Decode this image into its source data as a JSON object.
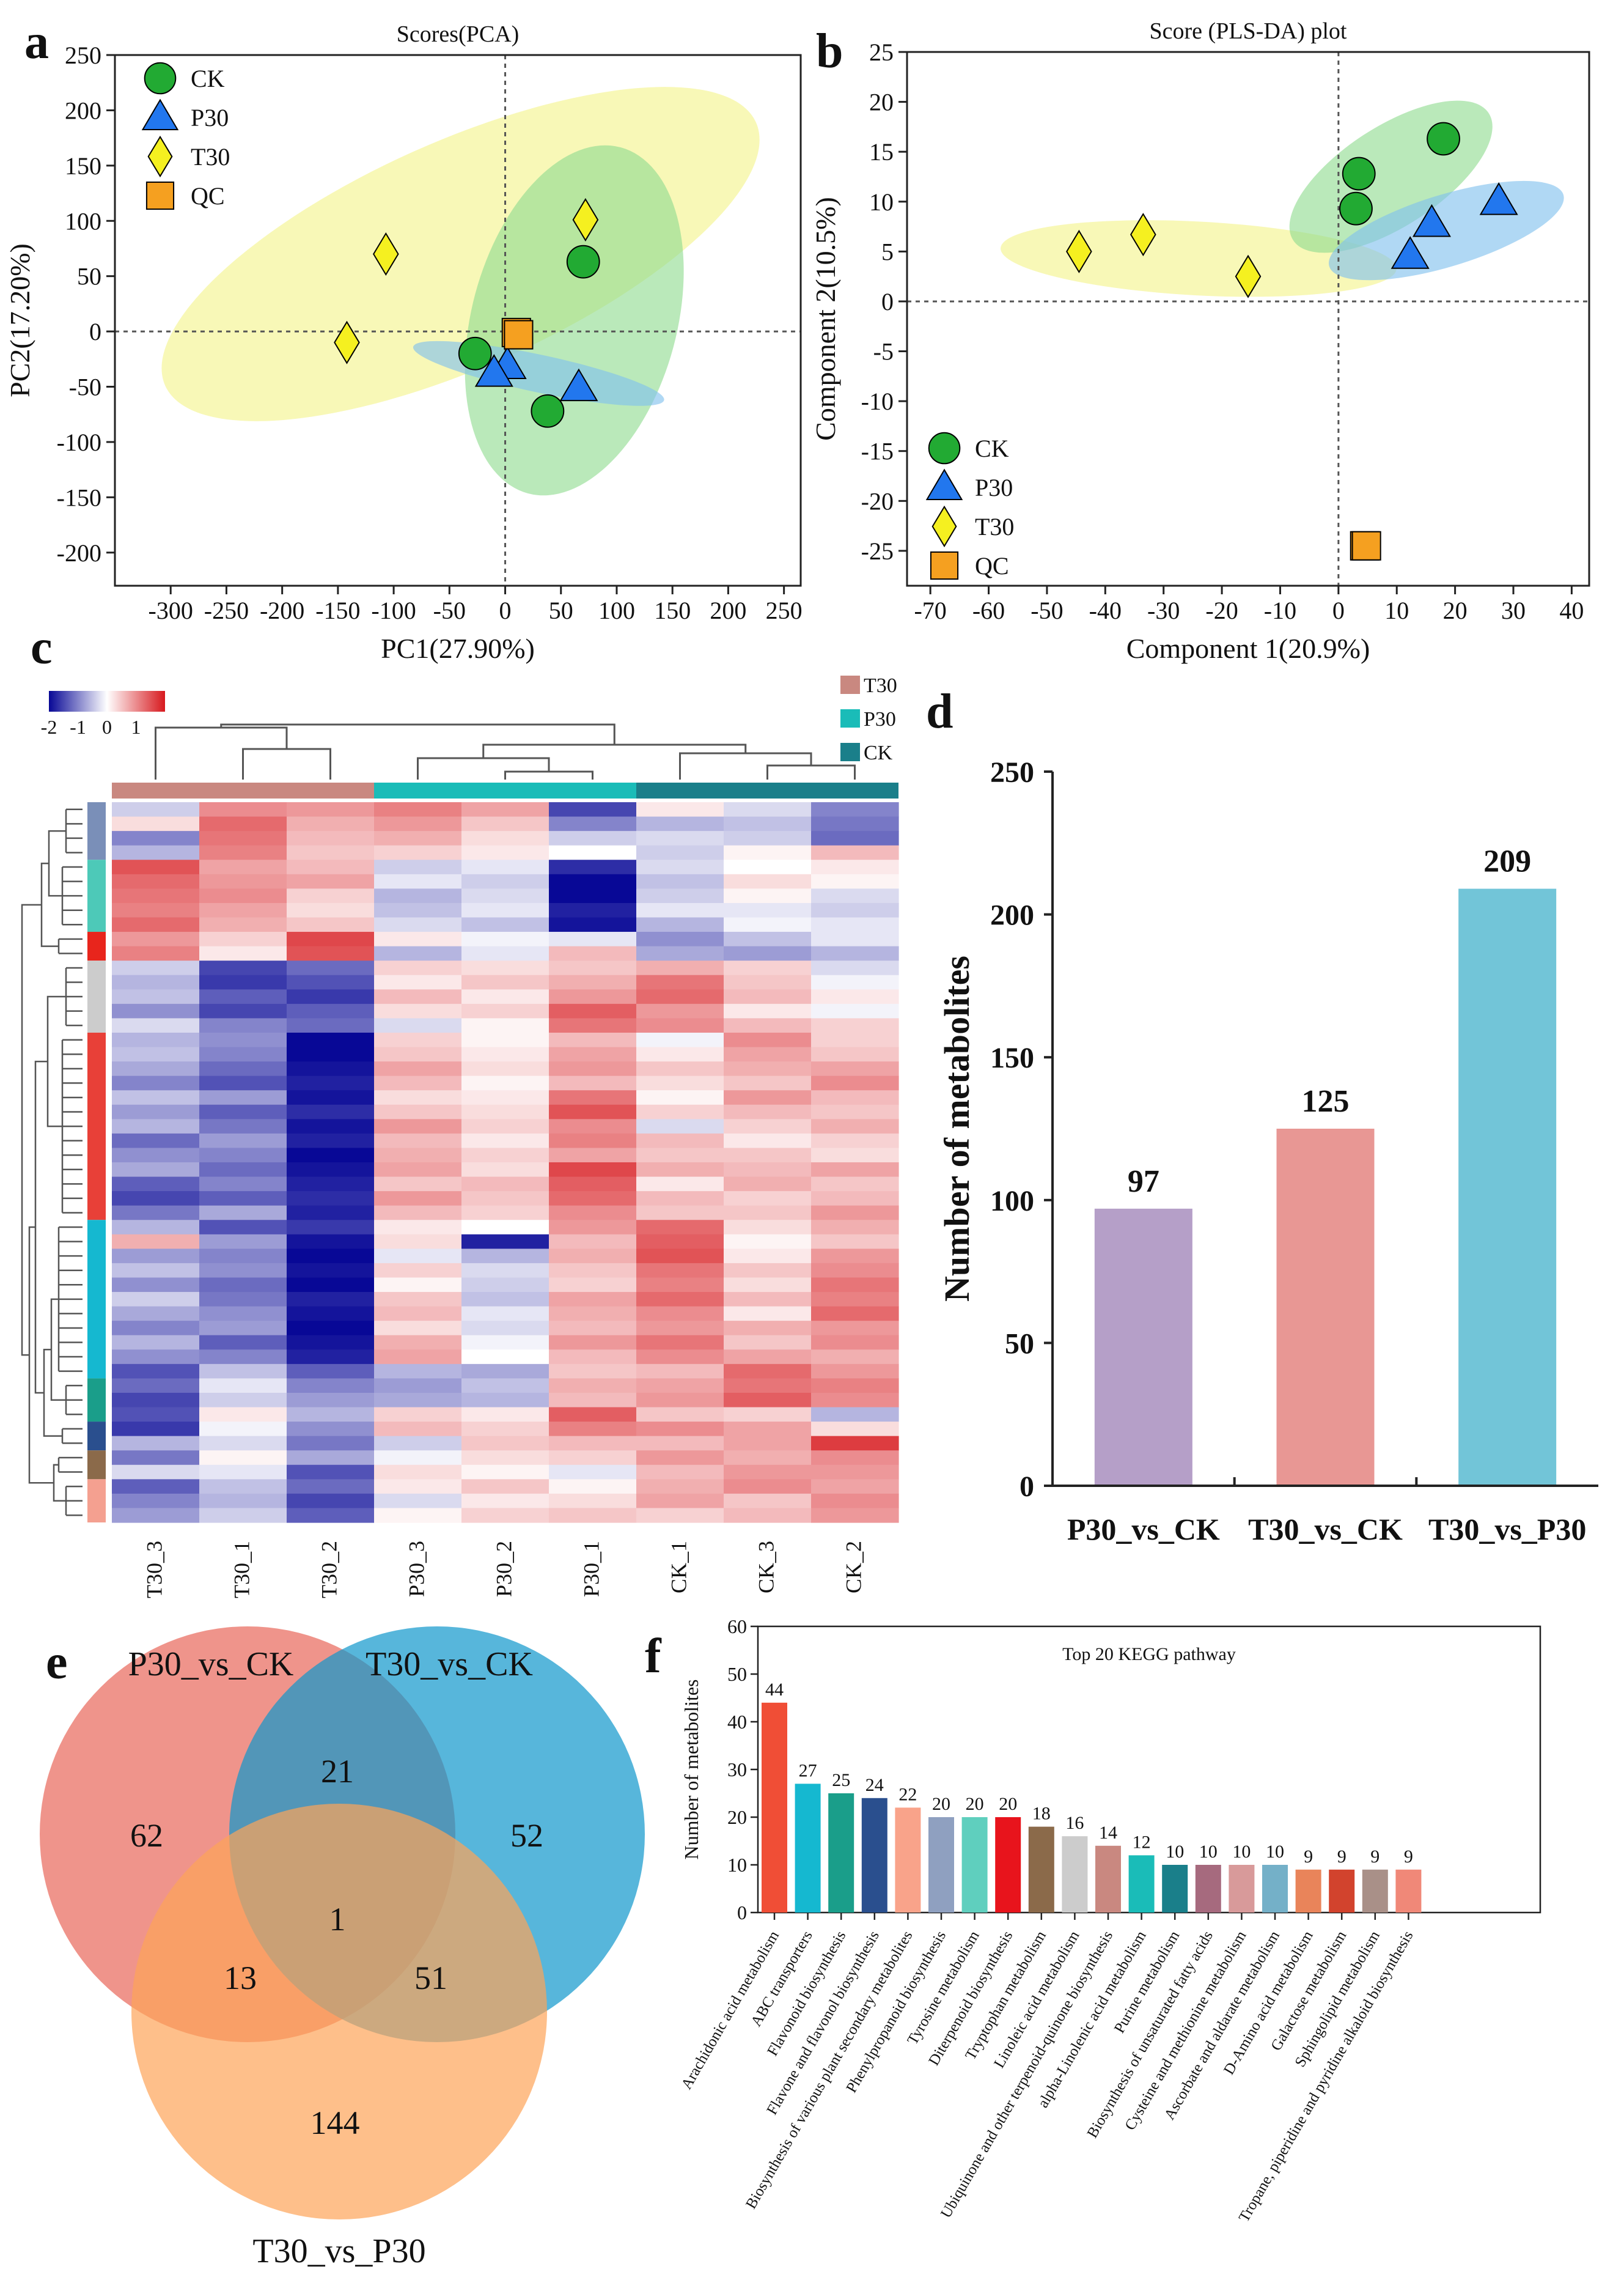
{
  "panel_labels": {
    "a": "a",
    "b": "b",
    "c": "c",
    "d": "d",
    "e": "e",
    "f": "f"
  },
  "colors": {
    "ck": "#22aa33",
    "p30": "#2277ee",
    "t30": "#f5f020",
    "qc": "#f5a020",
    "ell_ck": "#8fdc8f",
    "ell_p30": "#7fc0ee",
    "ell_t30": "#f4f48a",
    "bar_d": [
      "#b59fc8",
      "#e89794",
      "#72c5d8"
    ],
    "venn": [
      "#e8665a",
      "#0f97cc",
      "#fda458"
    ],
    "heat_t30": "#c98880",
    "heat_p30": "#1abcb8",
    "heat_ck": "#1a7f8a"
  },
  "chart_data": [
    {
      "id": "a",
      "type": "scatter",
      "title": "Scores(PCA)",
      "xlabel": "PC1(27.90%)",
      "ylabel": "PC2(17.20%)",
      "xlim": [
        -350,
        265
      ],
      "ylim": [
        -230,
        250
      ],
      "xticks": [
        -300,
        -250,
        -200,
        -150,
        -100,
        -50,
        0,
        50,
        100,
        150,
        200,
        250
      ],
      "yticks": [
        -200,
        -150,
        -100,
        -50,
        0,
        50,
        100,
        150,
        200,
        250
      ],
      "legend": [
        "CK",
        "P30",
        "T30",
        "QC"
      ],
      "series": [
        {
          "name": "CK",
          "points": [
            [
              70,
              63
            ],
            [
              -27,
              -20
            ],
            [
              38,
              -72
            ]
          ]
        },
        {
          "name": "P30",
          "points": [
            [
              2,
              -31
            ],
            [
              -10,
              -38
            ],
            [
              66,
              -51
            ]
          ]
        },
        {
          "name": "T30",
          "points": [
            [
              72,
              101
            ],
            [
              -107,
              70
            ],
            [
              -142,
              -10
            ]
          ]
        },
        {
          "name": "QC",
          "points": [
            [
              10,
              -1
            ],
            [
              12,
              -3
            ]
          ]
        }
      ],
      "ellipses": [
        {
          "name": "T30",
          "cx": -40,
          "cy": 70,
          "rx": 290,
          "ry": 102,
          "angle": 24
        },
        {
          "name": "CK",
          "cx": 62,
          "cy": 10,
          "rx": 92,
          "ry": 162,
          "angle": -15
        },
        {
          "name": "P30",
          "cx": 30,
          "cy": -38,
          "rx": 115,
          "ry": 17,
          "angle": -12
        }
      ]
    },
    {
      "id": "b",
      "type": "scatter",
      "title": "Score (PLS-DA) plot",
      "xlabel": "Component 1(20.9%)",
      "ylabel": "Component 2(10.5%)",
      "xlim": [
        -74,
        43
      ],
      "ylim": [
        -28.5,
        25
      ],
      "xticks": [
        -70,
        -60,
        -50,
        -40,
        -30,
        -20,
        -10,
        0,
        10,
        20,
        30,
        40
      ],
      "yticks": [
        -25,
        -20,
        -15,
        -10,
        -5,
        0,
        5,
        10,
        15,
        20,
        25
      ],
      "legend": [
        "CK",
        "P30",
        "T30",
        "QC"
      ],
      "series": [
        {
          "name": "CK",
          "points": [
            [
              18,
              16.3
            ],
            [
              3.5,
              12.8
            ],
            [
              3,
              9.3
            ]
          ]
        },
        {
          "name": "P30",
          "points": [
            [
              27.5,
              10
            ],
            [
              16,
              7.8
            ],
            [
              12.3,
              4.6
            ]
          ]
        },
        {
          "name": "T30",
          "points": [
            [
              -33.5,
              6.7
            ],
            [
              -44.5,
              5
            ],
            [
              -15.5,
              2.5
            ]
          ]
        },
        {
          "name": "QC",
          "points": [
            [
              4.5,
              -24.5
            ],
            [
              4.8,
              -24.5
            ]
          ]
        }
      ],
      "ellipses": [
        {
          "name": "T30",
          "cx": -24,
          "cy": 4.3,
          "rx": 34,
          "ry": 3.7,
          "angle": -3
        },
        {
          "name": "CK",
          "cx": 9,
          "cy": 12.5,
          "rx": 20,
          "ry": 5,
          "angle": 33
        },
        {
          "name": "P30",
          "cx": 18.5,
          "cy": 7.1,
          "rx": 21,
          "ry": 3.6,
          "angle": 17
        }
      ]
    },
    {
      "id": "c",
      "type": "heatmap",
      "columns": [
        "T30_3",
        "T30_1",
        "T30_2",
        "P30_3",
        "P30_2",
        "P30_1",
        "CK_1",
        "CK_3",
        "CK_2"
      ],
      "groups": [
        "T30",
        "P30",
        "CK"
      ],
      "scale_labels": [
        "-2",
        "-1",
        "0",
        "1"
      ],
      "value_range": [
        -2,
        2
      ],
      "row_cluster_colors": [
        "#7a8fb8",
        "#4dc9b8",
        "#e8251c",
        "#cccccc",
        "#e84038",
        "#15b8d0",
        "#1a9e8a",
        "#2a4f8e",
        "#8b6a4a",
        "#f4a090"
      ],
      "row_cluster_sizes": [
        4,
        5,
        2,
        5,
        13,
        11,
        3,
        2,
        2,
        3
      ],
      "values": [
        [
          -0.4,
          1.0,
          0.9,
          1.1,
          0.8,
          -1.5,
          0.2,
          -0.3,
          -1.0
        ],
        [
          0.3,
          1.3,
          0.7,
          0.9,
          0.5,
          -1.0,
          -0.6,
          -0.5,
          -1.1
        ],
        [
          -1.0,
          1.2,
          0.6,
          0.7,
          0.3,
          -0.4,
          -0.3,
          -0.4,
          -1.2
        ],
        [
          -0.6,
          1.1,
          0.5,
          0.4,
          0.2,
          0.0,
          -0.4,
          0.1,
          0.6
        ],
        [
          1.5,
          0.8,
          0.6,
          -0.4,
          -0.2,
          -1.7,
          -0.3,
          0.0,
          0.2
        ],
        [
          1.3,
          0.9,
          0.8,
          -0.2,
          -0.4,
          -2.0,
          -0.5,
          0.3,
          0.1
        ],
        [
          1.2,
          1.0,
          0.4,
          -0.6,
          -0.3,
          -2.0,
          -0.4,
          0.1,
          -0.3
        ],
        [
          1.1,
          0.8,
          0.3,
          -0.5,
          -0.2,
          -1.8,
          -0.2,
          -0.2,
          -0.4
        ],
        [
          1.3,
          0.7,
          0.5,
          -0.3,
          -0.5,
          -1.9,
          -0.6,
          -0.1,
          -0.2
        ],
        [
          0.9,
          0.4,
          1.6,
          0.2,
          -0.1,
          -0.2,
          -0.9,
          -0.5,
          -0.2
        ],
        [
          1.1,
          0.2,
          1.5,
          -0.6,
          -0.2,
          0.6,
          -0.7,
          -0.8,
          -0.6
        ],
        [
          -0.4,
          -1.5,
          -1.2,
          0.4,
          0.3,
          0.5,
          0.7,
          0.4,
          -0.3
        ],
        [
          -0.6,
          -1.6,
          -1.4,
          0.2,
          0.5,
          0.7,
          1.2,
          0.5,
          -0.1
        ],
        [
          -0.5,
          -1.3,
          -1.6,
          0.6,
          0.2,
          0.9,
          1.3,
          0.6,
          0.2
        ],
        [
          -0.9,
          -1.5,
          -1.3,
          0.3,
          0.4,
          1.4,
          0.9,
          0.2,
          -0.1
        ],
        [
          -0.3,
          -1.0,
          -1.2,
          -0.3,
          0.1,
          1.2,
          1.0,
          0.6,
          0.4
        ],
        [
          -0.6,
          -0.9,
          -2.0,
          0.4,
          0.1,
          0.6,
          -0.1,
          1.0,
          0.4
        ],
        [
          -0.5,
          -1.0,
          -2.0,
          0.5,
          0.2,
          0.8,
          0.2,
          0.8,
          0.5
        ],
        [
          -0.7,
          -1.2,
          -1.9,
          0.8,
          0.3,
          0.9,
          0.5,
          0.7,
          0.8
        ],
        [
          -1.0,
          -1.4,
          -1.8,
          0.6,
          0.1,
          0.6,
          0.3,
          0.5,
          1.0
        ],
        [
          -0.5,
          -0.8,
          -1.9,
          0.3,
          0.2,
          1.2,
          0.1,
          0.9,
          0.6
        ],
        [
          -0.8,
          -1.3,
          -1.7,
          0.5,
          0.3,
          1.5,
          0.4,
          0.6,
          0.5
        ],
        [
          -0.6,
          -1.1,
          -1.9,
          0.9,
          0.4,
          1.0,
          -0.3,
          0.4,
          0.7
        ],
        [
          -1.2,
          -0.8,
          -1.8,
          0.6,
          0.2,
          1.1,
          0.6,
          0.2,
          0.4
        ],
        [
          -0.9,
          -1.0,
          -2.0,
          0.7,
          0.4,
          0.8,
          0.5,
          0.5,
          0.3
        ],
        [
          -0.7,
          -1.2,
          -1.9,
          0.8,
          0.3,
          1.6,
          0.7,
          0.6,
          0.8
        ],
        [
          -1.3,
          -1.0,
          -1.8,
          0.5,
          0.6,
          1.4,
          0.2,
          0.7,
          0.5
        ],
        [
          -1.5,
          -1.3,
          -1.7,
          0.9,
          0.5,
          1.3,
          0.6,
          0.4,
          0.6
        ],
        [
          -1.1,
          -0.7,
          -1.8,
          0.6,
          0.4,
          1.0,
          0.5,
          0.5,
          0.9
        ],
        [
          -0.6,
          -1.4,
          -1.6,
          0.2,
          0.0,
          0.9,
          1.3,
          0.3,
          0.7
        ],
        [
          0.7,
          -0.8,
          -1.9,
          0.3,
          -1.8,
          0.6,
          1.4,
          0.1,
          0.5
        ],
        [
          -0.8,
          -1.0,
          -2.0,
          -0.2,
          -0.6,
          0.7,
          1.5,
          0.2,
          0.9
        ],
        [
          -0.5,
          -0.9,
          -1.9,
          0.4,
          -0.3,
          0.5,
          1.2,
          0.5,
          1.0
        ],
        [
          -0.9,
          -1.2,
          -2.0,
          0.1,
          -0.4,
          0.4,
          1.1,
          0.3,
          1.2
        ],
        [
          -0.4,
          -1.1,
          -1.8,
          0.5,
          -0.5,
          0.8,
          1.3,
          0.6,
          1.1
        ],
        [
          -0.7,
          -0.9,
          -1.9,
          0.6,
          -0.2,
          0.7,
          1.0,
          0.2,
          1.3
        ],
        [
          -1.0,
          -0.8,
          -2.0,
          0.3,
          -0.3,
          0.6,
          0.9,
          0.7,
          0.9
        ],
        [
          -0.6,
          -1.3,
          -1.9,
          0.7,
          -0.1,
          0.9,
          1.2,
          0.5,
          1.0
        ],
        [
          -0.9,
          -1.0,
          -1.8,
          0.8,
          0.0,
          0.6,
          1.0,
          0.8,
          0.7
        ],
        [
          -1.4,
          -0.5,
          -1.3,
          -0.6,
          -0.7,
          0.5,
          0.6,
          1.3,
          0.9
        ],
        [
          -1.2,
          -0.2,
          -1.0,
          -0.8,
          -0.5,
          0.7,
          0.8,
          1.2,
          1.1
        ],
        [
          -1.5,
          -0.4,
          -0.8,
          -0.7,
          -0.6,
          0.6,
          0.9,
          1.4,
          1.0
        ],
        [
          -1.4,
          0.2,
          -0.6,
          0.4,
          0.2,
          1.4,
          0.5,
          0.4,
          -0.6
        ],
        [
          -1.6,
          -0.1,
          -0.9,
          0.6,
          0.4,
          1.1,
          1.0,
          0.8,
          0.3
        ],
        [
          -0.6,
          -0.3,
          -1.1,
          -0.4,
          0.5,
          0.6,
          0.6,
          0.8,
          1.7
        ],
        [
          -1.1,
          0.1,
          -0.7,
          -0.1,
          0.3,
          0.4,
          0.9,
          0.7,
          1.0
        ],
        [
          -0.3,
          -0.2,
          -1.4,
          0.3,
          0.1,
          -0.2,
          0.6,
          0.9,
          0.9
        ],
        [
          -1.3,
          -0.5,
          -1.2,
          0.2,
          0.5,
          0.1,
          0.7,
          1.0,
          0.8
        ],
        [
          -1.0,
          -0.6,
          -1.5,
          -0.3,
          0.2,
          0.3,
          0.8,
          0.5,
          1.0
        ],
        [
          -0.8,
          -0.4,
          -1.3,
          0.1,
          0.4,
          0.5,
          0.4,
          0.6,
          0.9
        ]
      ]
    },
    {
      "id": "d",
      "type": "bar",
      "categories": [
        "P30_vs_CK",
        "T30_vs_CK",
        "T30_vs_P30"
      ],
      "values": [
        97,
        125,
        209
      ],
      "ylabel": "Number of metabolites",
      "ylim": [
        0,
        250
      ],
      "yticks": [
        0,
        50,
        100,
        150,
        200,
        250
      ]
    },
    {
      "id": "e",
      "type": "venn",
      "sets": [
        "P30_vs_CK",
        "T30_vs_CK",
        "T30_vs_P30"
      ],
      "regions": {
        "a_only": 62,
        "b_only": 52,
        "c_only": 144,
        "ab": 21,
        "ac": 13,
        "bc": 51,
        "abc": 1
      }
    },
    {
      "id": "f",
      "type": "bar",
      "title": "Top 20 KEGG pathway",
      "ylabel": "Number of metabolites",
      "ylim": [
        0,
        60
      ],
      "yticks": [
        0,
        10,
        20,
        30,
        40,
        50,
        60
      ],
      "categories": [
        "Arachidonic acid metabolism",
        "ABC transporters",
        "Flavonoid biosynthesis",
        "Flavone and flavonol biosynthesis",
        "Biosynthesis of various plant secondary metabolites",
        "Phenylpropanoid biosynthesis",
        "Tyrosine metabolism",
        "Diterpenoid biosynthesis",
        "Tryptophan metabolism",
        "Linoleic acid metabolism",
        "Ubiquinone and other terpenoid-quinone biosynthesis",
        "alpha-Linolenic acid metabolism",
        "Purine metabolism",
        "Biosynthesis of unsaturated fatty acids",
        "Cysteine and methionine metabolism",
        "Ascorbate and aldarate metabolism",
        "D-Amino acid metabolism",
        "Galactose metabolism",
        "Sphingolipid metabolism",
        "Tropane, piperidine and pyridine alkaloid biosynthesis"
      ],
      "values": [
        44,
        27,
        25,
        24,
        22,
        20,
        20,
        20,
        18,
        16,
        14,
        12,
        10,
        10,
        10,
        10,
        9,
        9,
        9,
        9
      ],
      "colors": [
        "#f04e36",
        "#15b8d0",
        "#1a9e8a",
        "#2a4f8e",
        "#f9a38a",
        "#8fa0c0",
        "#5fcfbe",
        "#e8141c",
        "#8b6a4a",
        "#cccccc",
        "#c98880",
        "#1abcb8",
        "#1a7f8a",
        "#a66a7e",
        "#d89a9a",
        "#74b0c8",
        "#e9845a",
        "#d2432d",
        "#a99088",
        "#f08878"
      ]
    }
  ]
}
